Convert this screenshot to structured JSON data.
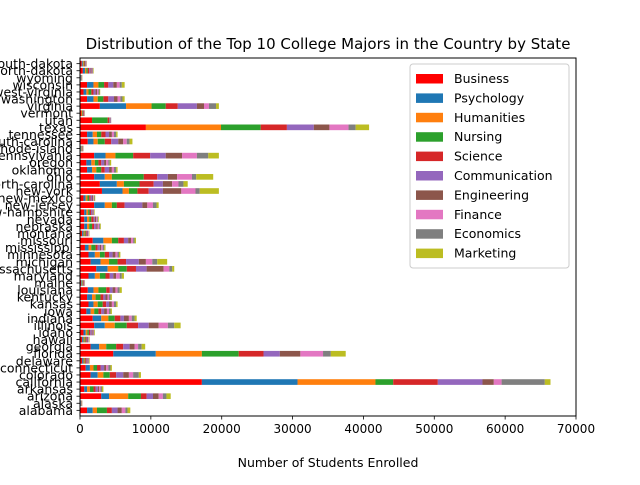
{
  "chart_data": {
    "type": "bar",
    "orientation": "horizontal",
    "stacked": true,
    "title": "Distribution of the Top 10 College Majors in the Country by State",
    "xlabel": "Number of Students Enrolled",
    "ylabel": "",
    "xlim": [
      0,
      70000
    ],
    "xticks": [
      0,
      10000,
      20000,
      30000,
      40000,
      50000,
      60000,
      70000
    ],
    "grid": false,
    "legend_position": "top-right",
    "categories": [
      "alabama",
      "alaska",
      "arizona",
      "arkansas",
      "california",
      "colorado",
      "connecticut",
      "delaware",
      "florida",
      "georgia",
      "hawaii",
      "idaho",
      "illinois",
      "indiana",
      "iowa",
      "kansas",
      "kentucky",
      "louisiana",
      "maine",
      "maryland",
      "massachusetts",
      "michigan",
      "minnesota",
      "mississippi",
      "missouri",
      "montana",
      "nebraska",
      "nevada",
      "new-hampshire",
      "new-jersey",
      "new-mexico",
      "new-york",
      "north-carolina",
      "ohio",
      "oklahoma",
      "oregon",
      "pennsylvania",
      "rhode-island",
      "south-carolina",
      "tennessee",
      "texas",
      "utah",
      "vermont",
      "virginia",
      "washington",
      "west-virginia",
      "wisconsin",
      "wyoming",
      "north-dakota",
      "south-dakota"
    ],
    "series": [
      {
        "name": "Business",
        "color": "#ff0000",
        "values": [
          1000,
          80,
          3000,
          600,
          17200,
          1500,
          800,
          300,
          4700,
          1500,
          300,
          500,
          2000,
          1800,
          900,
          1200,
          1000,
          1100,
          150,
          1200,
          2300,
          1500,
          1200,
          700,
          1800,
          300,
          600,
          600,
          600,
          2000,
          500,
          3100,
          2800,
          2000,
          1000,
          900,
          2000,
          100,
          1100,
          1000,
          9300,
          1700,
          200,
          2800,
          1000,
          500,
          1000,
          80,
          400,
          250
        ]
      },
      {
        "name": "Psychology",
        "color": "#1f77b4",
        "values": [
          800,
          50,
          1100,
          400,
          13500,
          1000,
          600,
          200,
          6000,
          1200,
          200,
          300,
          1500,
          1200,
          600,
          700,
          700,
          800,
          100,
          900,
          1600,
          1400,
          900,
          500,
          1500,
          200,
          400,
          400,
          300,
          1500,
          300,
          2900,
          2400,
          1500,
          700,
          700,
          1600,
          80,
          800,
          800,
          0,
          0,
          0,
          3700,
          900,
          400,
          900,
          50,
          300,
          150
        ]
      },
      {
        "name": "Humanities",
        "color": "#ff7f0e",
        "values": [
          600,
          40,
          2700,
          400,
          11000,
          800,
          500,
          150,
          6500,
          1000,
          150,
          250,
          1400,
          1000,
          500,
          600,
          500,
          700,
          80,
          700,
          1500,
          1200,
          700,
          400,
          1200,
          150,
          300,
          300,
          250,
          1000,
          250,
          900,
          1000,
          1000,
          600,
          500,
          1400,
          60,
          600,
          600,
          10600,
          0,
          100,
          3600,
          600,
          300,
          700,
          40,
          200,
          120
        ]
      },
      {
        "name": "Nursing",
        "color": "#2ca02c",
        "values": [
          1400,
          30,
          1800,
          500,
          2500,
          900,
          500,
          100,
          5200,
          1400,
          150,
          200,
          1700,
          900,
          600,
          700,
          700,
          1100,
          80,
          800,
          1200,
          1200,
          700,
          600,
          900,
          150,
          400,
          300,
          200,
          700,
          250,
          1200,
          2200,
          4500,
          700,
          500,
          2500,
          50,
          1000,
          600,
          5600,
          2200,
          100,
          2000,
          800,
          400,
          800,
          30,
          200,
          100
        ]
      },
      {
        "name": "Science",
        "color": "#d62728",
        "values": [
          700,
          40,
          800,
          300,
          6300,
          900,
          500,
          150,
          3500,
          1000,
          150,
          200,
          1600,
          800,
          400,
          500,
          400,
          500,
          80,
          600,
          1300,
          1200,
          600,
          300,
          800,
          150,
          300,
          300,
          200,
          1100,
          200,
          1600,
          2000,
          1900,
          500,
          400,
          2400,
          50,
          900,
          600,
          3700,
          200,
          100,
          1700,
          700,
          300,
          600,
          40,
          200,
          100
        ]
      },
      {
        "name": "Communication",
        "color": "#9467bd",
        "values": [
          800,
          30,
          900,
          300,
          6300,
          1000,
          500,
          100,
          2300,
          900,
          100,
          200,
          1500,
          500,
          400,
          400,
          300,
          400,
          60,
          500,
          1500,
          1800,
          500,
          300,
          600,
          100,
          300,
          200,
          150,
          2500,
          200,
          2000,
          1300,
          1500,
          600,
          400,
          2200,
          40,
          1000,
          500,
          3800,
          0,
          50,
          2700,
          800,
          300,
          700,
          30,
          200,
          80
        ]
      },
      {
        "name": "Engineering",
        "color": "#8c564b",
        "values": [
          600,
          20,
          800,
          200,
          1600,
          800,
          300,
          100,
          2900,
          700,
          100,
          150,
          1400,
          700,
          400,
          400,
          300,
          400,
          50,
          400,
          2400,
          1000,
          400,
          200,
          400,
          100,
          200,
          200,
          100,
          700,
          150,
          2600,
          1300,
          1300,
          400,
          300,
          2300,
          40,
          700,
          400,
          2200,
          100,
          50,
          1000,
          500,
          200,
          500,
          20,
          150,
          60
        ]
      },
      {
        "name": "Finance",
        "color": "#e377c2",
        "values": [
          500,
          20,
          600,
          200,
          1100,
          600,
          300,
          100,
          3200,
          500,
          80,
          100,
          1300,
          400,
          300,
          300,
          200,
          300,
          40,
          500,
          800,
          900,
          300,
          200,
          300,
          80,
          200,
          150,
          100,
          800,
          100,
          2000,
          900,
          2100,
          300,
          300,
          2100,
          30,
          500,
          300,
          2700,
          100,
          50,
          700,
          400,
          200,
          400,
          20,
          100,
          50
        ]
      },
      {
        "name": "Economics",
        "color": "#7f7f7f",
        "values": [
          300,
          20,
          500,
          200,
          6100,
          800,
          300,
          100,
          1100,
          500,
          80,
          100,
          900,
          400,
          200,
          300,
          200,
          300,
          40,
          300,
          400,
          700,
          200,
          200,
          200,
          60,
          150,
          100,
          100,
          500,
          100,
          600,
          700,
          600,
          300,
          200,
          1600,
          30,
          400,
          300,
          1000,
          100,
          30,
          1000,
          300,
          150,
          300,
          20,
          100,
          40
        ]
      },
      {
        "name": "Marketing",
        "color": "#bcbd22",
        "values": [
          400,
          20,
          600,
          200,
          800,
          300,
          200,
          80,
          2100,
          500,
          60,
          100,
          900,
          300,
          200,
          200,
          200,
          300,
          30,
          300,
          300,
          1400,
          200,
          200,
          200,
          60,
          100,
          100,
          80,
          300,
          100,
          2700,
          600,
          2400,
          200,
          200,
          1500,
          30,
          400,
          200,
          1900,
          0,
          30,
          400,
          300,
          100,
          400,
          20,
          80,
          40
        ]
      }
    ]
  }
}
